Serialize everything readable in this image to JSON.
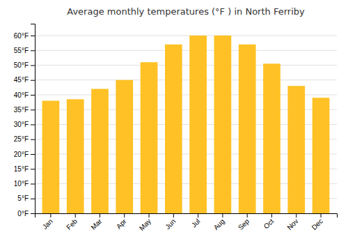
{
  "chart_data": {
    "type": "bar",
    "title": "Average monthly temperatures (°F ) in North Ferriby",
    "categories": [
      "Jan",
      "Feb",
      "Mar",
      "Apr",
      "May",
      "Jun",
      "Jul",
      "Aug",
      "Sep",
      "Oct",
      "Nov",
      "Dec"
    ],
    "values": [
      38,
      38.5,
      42,
      45,
      51,
      57,
      60,
      60,
      57,
      50.5,
      43,
      39
    ],
    "color": "#FFC125",
    "ylim": [
      0,
      64
    ],
    "yticks": [
      {
        "value": 0,
        "label": "0°F"
      },
      {
        "value": 5,
        "label": "5°F"
      },
      {
        "value": 10,
        "label": "10°F"
      },
      {
        "value": 15,
        "label": "15°F"
      },
      {
        "value": 20,
        "label": "20°F"
      },
      {
        "value": 25,
        "label": "25°F"
      },
      {
        "value": 30,
        "label": "30°F"
      },
      {
        "value": 35,
        "label": "35°F"
      },
      {
        "value": 40,
        "label": "40°F"
      },
      {
        "value": 45,
        "label": "45°F"
      },
      {
        "value": 50,
        "label": "50°F"
      },
      {
        "value": 55,
        "label": "55°F"
      },
      {
        "value": 60,
        "label": "60°F"
      }
    ],
    "grid": true
  }
}
